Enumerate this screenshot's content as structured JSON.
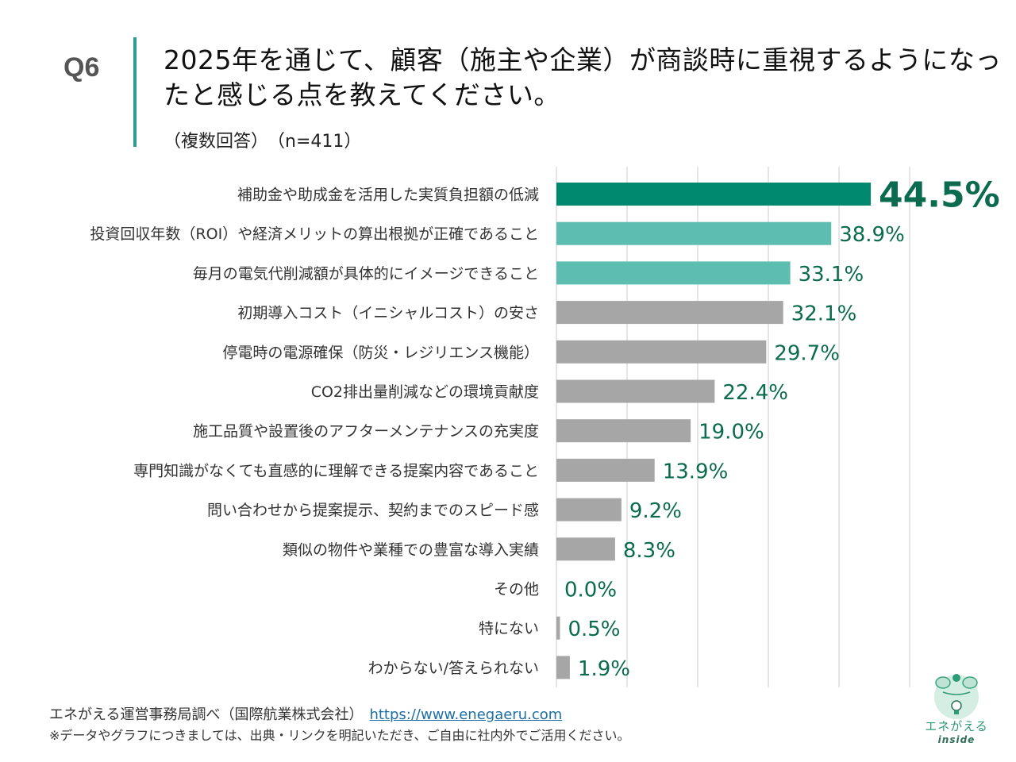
{
  "header": {
    "question_number": "Q6",
    "title": "2025年を通じて、顧客（施主や企業）が商談時に重視するようになったと感じる点を教えてください。",
    "note": "（複数回答）",
    "sample": "（n=411）"
  },
  "colors": {
    "top_bar": "#00896f",
    "highlight_bar": "#5dbdb0",
    "other_bar": "#a6a6a6",
    "value_label": "#0b6b4f",
    "accent_line": "#2a9d8f",
    "gridline": "#dddddd"
  },
  "chart_data": {
    "type": "bar",
    "orientation": "horizontal",
    "title": "2025年を通じて、顧客（施主や企業）が商談時に重視するようになったと感じる点を教えてください。",
    "xlabel": "",
    "ylabel": "",
    "xlim": [
      0,
      50
    ],
    "grid": true,
    "grid_step": 10,
    "unit": "%",
    "categories": [
      "補助金や助成金を活用した実質負担額の低減",
      "投資回収年数（ROI）や経済メリットの算出根拠が正確であること",
      "毎月の電気代削減額が具体的にイメージできること",
      "初期導入コスト（イニシャルコスト）の安さ",
      "停電時の電源確保（防災・レジリエンス機能）",
      "CO2排出量削減などの環境貢献度",
      "施工品質や設置後のアフターメンテナンスの充実度",
      "専門知識がなくても直感的に理解できる提案内容であること",
      "問い合わせから提案提示、契約までのスピード感",
      "類似の物件や業種での豊富な導入実績",
      "その他",
      "特にない",
      "わからない/答えられない"
    ],
    "values": [
      44.5,
      38.9,
      33.1,
      32.1,
      29.7,
      22.4,
      19.0,
      13.9,
      9.2,
      8.3,
      0.0,
      0.5,
      1.9
    ],
    "value_labels": [
      "44.5%",
      "38.9%",
      "33.1%",
      "32.1%",
      "29.7%",
      "22.4%",
      "19.0%",
      "13.9%",
      "9.2%",
      "8.3%",
      "0.0%",
      "0.5%",
      "1.9%"
    ],
    "bar_color_roles": [
      "top",
      "highlight",
      "highlight",
      "other",
      "other",
      "other",
      "other",
      "other",
      "other",
      "other",
      "other",
      "other",
      "other"
    ]
  },
  "footer": {
    "source": "エネがえる運営事務局調べ（国際航業株式会社）",
    "link": "https://www.enegaeru.com",
    "notice": "※データやグラフにつきましては、出典・リンクを明記いただき、ご自由に社内外でご活用ください。"
  },
  "logo": {
    "name": "エネがえる",
    "sub": "inside"
  }
}
